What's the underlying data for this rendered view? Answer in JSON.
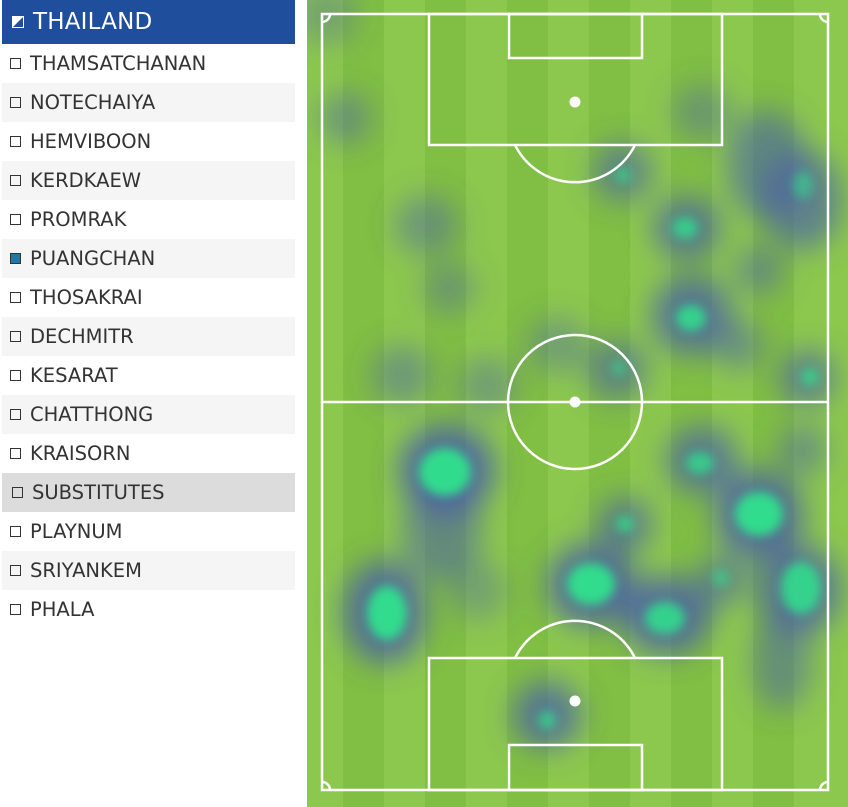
{
  "team": {
    "name": "THAILAND"
  },
  "players": [
    {
      "name": "THAMSATCHANAN",
      "checked": false
    },
    {
      "name": "NOTECHAIYA",
      "checked": false
    },
    {
      "name": "HEMVIBOON",
      "checked": false
    },
    {
      "name": "KERDKAEW",
      "checked": false
    },
    {
      "name": "PROMRAK",
      "checked": false
    },
    {
      "name": "PUANGCHAN",
      "checked": true
    },
    {
      "name": "THOSAKRAI",
      "checked": false
    },
    {
      "name": "DECHMITR",
      "checked": false
    },
    {
      "name": "KESARAT",
      "checked": false
    },
    {
      "name": "CHATTHONG",
      "checked": false
    },
    {
      "name": "KRAISORN",
      "checked": false
    }
  ],
  "substitutes": {
    "label": "SUBSTITUTES",
    "players": [
      {
        "name": "PLAYNUM",
        "checked": false
      },
      {
        "name": "SRIYANKEM",
        "checked": false
      },
      {
        "name": "PHALA",
        "checked": false
      }
    ]
  },
  "colors": {
    "header_bg": "#1f4e9c",
    "checked_fill": "#1f78a8",
    "pitch_light": "#8cc84e",
    "pitch_dark": "#80be44",
    "heat_cool": "#4a5fa8",
    "heat_hot": "#2fe28c"
  }
}
